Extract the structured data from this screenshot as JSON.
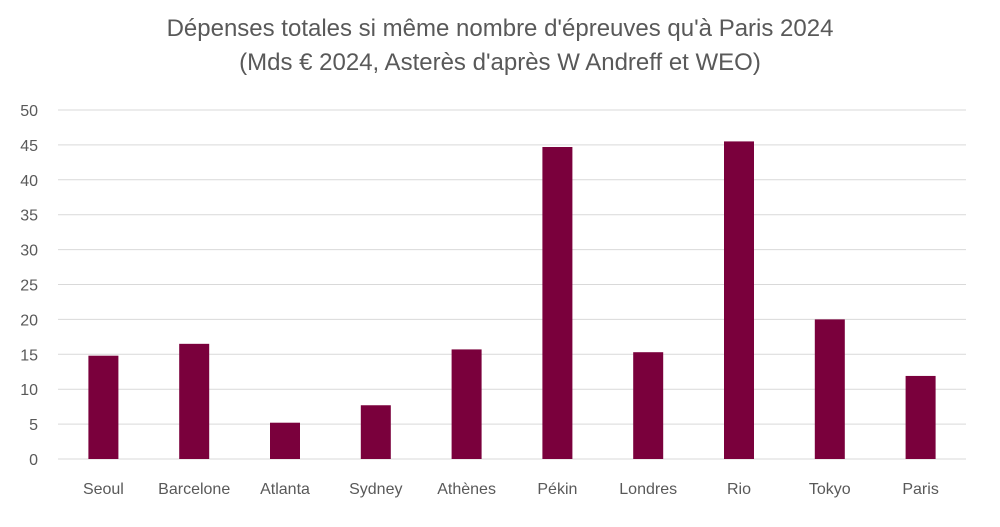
{
  "chart_data": {
    "type": "bar",
    "title_line1": "Dépenses totales si même nombre d'épreuves qu'à Paris 2024",
    "title_line2": "(Mds € 2024, Asterès d'après W Andreff et WEO)",
    "categories": [
      "Seoul",
      "Barcelone",
      "Atlanta",
      "Sydney",
      "Athènes",
      "Pékin",
      "Londres",
      "Rio",
      "Tokyo",
      "Paris"
    ],
    "values": [
      14.8,
      16.5,
      5.2,
      7.7,
      15.7,
      44.7,
      15.3,
      45.5,
      20.0,
      11.9
    ],
    "ylim": [
      0,
      50
    ],
    "yticks": [
      0,
      5,
      10,
      15,
      20,
      25,
      30,
      35,
      40,
      45,
      50
    ],
    "grid": true,
    "bar_color": "#7a003c"
  }
}
